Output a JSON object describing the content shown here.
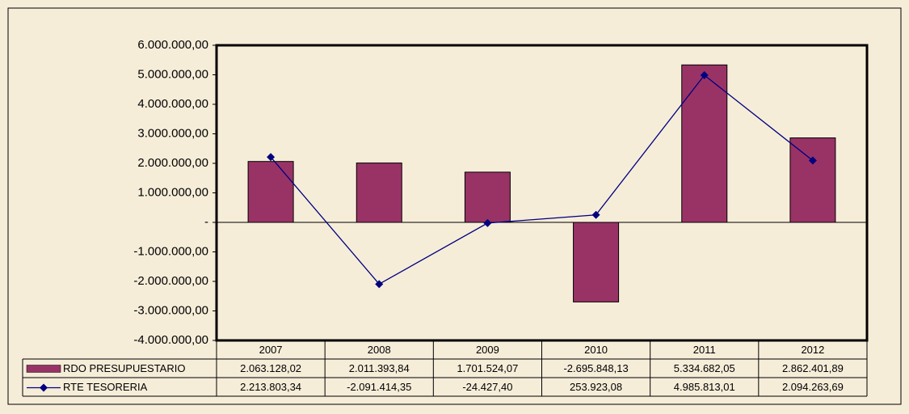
{
  "chart_data": {
    "type": "bar",
    "categories": [
      "2007",
      "2008",
      "2009",
      "2010",
      "2011",
      "2012"
    ],
    "series": [
      {
        "name": "RDO PRESUPUESTARIO",
        "type": "bar",
        "color": "#993366",
        "values": [
          2063128.02,
          2011393.84,
          1701524.07,
          -2695848.13,
          5334682.05,
          2862401.89
        ],
        "value_labels": [
          "2.063.128,02",
          "2.011.393,84",
          "1.701.524,07",
          "-2.695.848,13",
          "5.334.682,05",
          "2.862.401,89"
        ]
      },
      {
        "name": "RTE TESORERIA",
        "type": "line",
        "color": "#000080",
        "values": [
          2213803.34,
          -2091414.35,
          -24427.4,
          253923.08,
          4985813.01,
          2094263.69
        ],
        "value_labels": [
          "2.213.803,34",
          "-2.091.414,35",
          "-24.427,40",
          "253.923,08",
          "4.985.813,01",
          "2.094.263,69"
        ]
      }
    ],
    "ylim": [
      -4000000,
      6000000
    ],
    "yticks": [
      {
        "value": -4000000,
        "label": "-4.000.000,00"
      },
      {
        "value": -3000000,
        "label": "-3.000.000,00"
      },
      {
        "value": -2000000,
        "label": "-2.000.000,00"
      },
      {
        "value": -1000000,
        "label": "-1.000.000,00"
      },
      {
        "value": 0,
        "label": "-"
      },
      {
        "value": 1000000,
        "label": "1.000.000,00"
      },
      {
        "value": 2000000,
        "label": "2.000.000,00"
      },
      {
        "value": 3000000,
        "label": "3.000.000,00"
      },
      {
        "value": 4000000,
        "label": "4.000.000,00"
      },
      {
        "value": 5000000,
        "label": "5.000.000,00"
      },
      {
        "value": 6000000,
        "label": "6.000.000,00"
      }
    ]
  }
}
